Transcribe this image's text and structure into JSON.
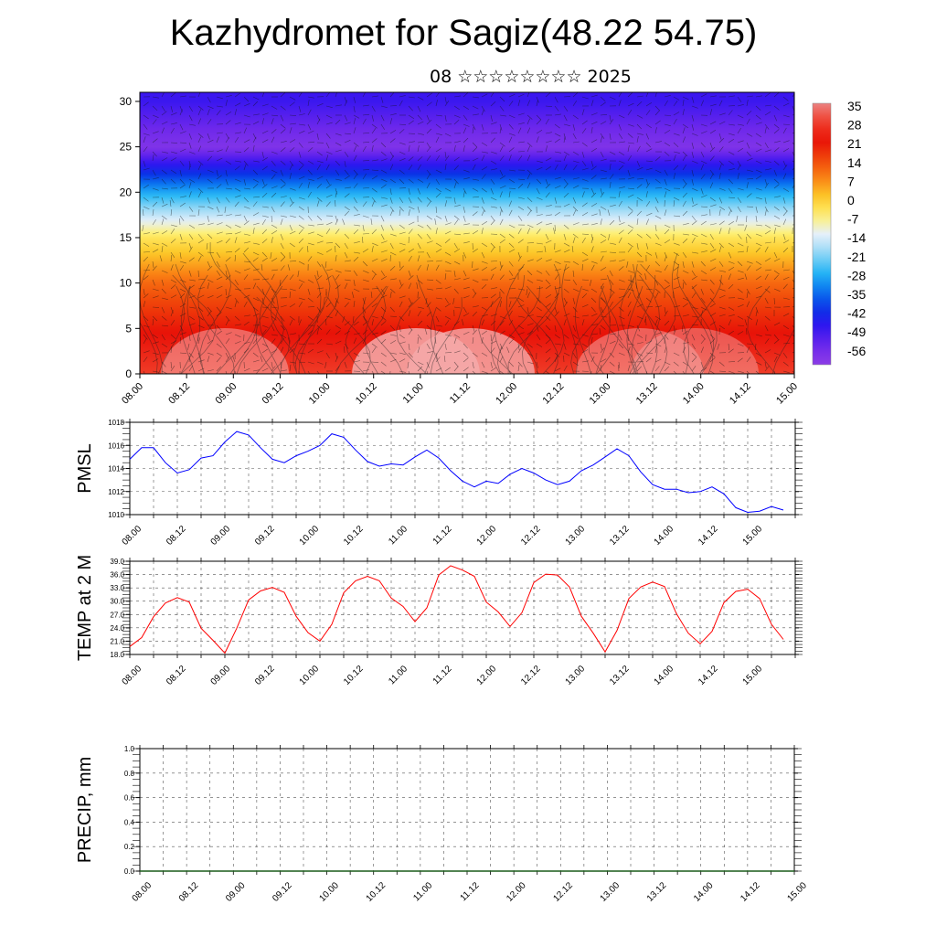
{
  "title": "Kazhydromet for Sagiz(48.22 54.75)",
  "subtitle": "08 ☆☆☆☆☆☆☆☆ 2025",
  "x_tick_labels": [
    "08.00",
    "08.12",
    "09.00",
    "09.12",
    "10.00",
    "10.12",
    "11.00",
    "11.12",
    "12.00",
    "12.12",
    "13.00",
    "13.12",
    "14.00",
    "14.12",
    "15.00"
  ],
  "chart_data": [
    {
      "type": "heatmap",
      "ylim": [
        0,
        31
      ],
      "yticks": [
        0,
        5,
        10,
        15,
        20,
        25,
        30
      ],
      "colorbar_labels": [
        "35",
        "28",
        "21",
        "14",
        "7",
        "0",
        "-7",
        "-14",
        "-21",
        "-28",
        "-35",
        "-42",
        "-49",
        "-56"
      ],
      "vertical_temperature_profile": {
        "levels": [
          0,
          5,
          10,
          15,
          20,
          25,
          30
        ],
        "values": [
          28,
          20,
          10,
          -5,
          -30,
          -60,
          -50
        ]
      }
    },
    {
      "type": "line",
      "ylabel": "PMSL",
      "ylim": [
        1010,
        1018
      ],
      "yticks": [
        "1010",
        "1012",
        "1014",
        "1016",
        "1018"
      ],
      "color": "#0000ff",
      "x_hours": [
        0,
        3,
        6,
        9,
        12,
        15,
        18,
        21,
        24,
        27,
        30,
        33,
        36,
        39,
        42,
        45,
        48,
        51,
        54,
        57,
        60,
        63,
        66,
        69,
        72,
        75,
        78,
        81,
        84,
        87,
        90,
        93,
        96,
        99,
        102,
        105,
        108,
        111,
        114,
        117,
        120,
        123,
        126,
        129,
        132,
        135,
        138,
        141,
        144,
        147,
        150,
        153,
        156,
        159,
        162,
        165
      ],
      "values": [
        1014.8,
        1015.8,
        1015.8,
        1014.5,
        1013.6,
        1013.9,
        1014.9,
        1015.1,
        1016.3,
        1017.2,
        1016.9,
        1015.8,
        1014.8,
        1014.5,
        1015.1,
        1015.5,
        1016.0,
        1017.0,
        1016.7,
        1015.6,
        1014.6,
        1014.2,
        1014.4,
        1014.3,
        1015.0,
        1015.6,
        1014.9,
        1013.8,
        1012.9,
        1012.4,
        1012.9,
        1012.7,
        1013.5,
        1014.0,
        1013.6,
        1013.0,
        1012.6,
        1012.9,
        1013.8,
        1014.3,
        1015.0,
        1015.7,
        1015.1,
        1013.7,
        1012.6,
        1012.2,
        1012.2,
        1011.9,
        1012.0,
        1012.4,
        1011.8,
        1010.6,
        1010.2,
        1010.3,
        1010.7,
        1010.4
      ]
    },
    {
      "type": "line",
      "ylabel": "TEMP at 2 M",
      "ylim": [
        18,
        39
      ],
      "yticks": [
        "18.0",
        "21.0",
        "24.0",
        "27.0",
        "30.0",
        "33.0",
        "36.0",
        "39.0"
      ],
      "color": "#ff0000",
      "x_hours": [
        0,
        3,
        6,
        9,
        12,
        15,
        18,
        21,
        24,
        27,
        30,
        33,
        36,
        39,
        42,
        45,
        48,
        51,
        54,
        57,
        60,
        63,
        66,
        69,
        72,
        75,
        78,
        81,
        84,
        87,
        90,
        93,
        96,
        99,
        102,
        105,
        108,
        111,
        114,
        117,
        120,
        123,
        126,
        129,
        132,
        135,
        138,
        141,
        144,
        147,
        150,
        153,
        156,
        159,
        162,
        165
      ],
      "values": [
        19.8,
        21.8,
        26.5,
        29.6,
        30.8,
        29.8,
        23.9,
        21.2,
        18.3,
        23.9,
        30.3,
        32.3,
        33.1,
        32.0,
        26.6,
        22.9,
        21.0,
        24.8,
        31.9,
        34.6,
        35.6,
        34.6,
        30.7,
        28.8,
        25.4,
        28.5,
        35.9,
        38.0,
        37.0,
        35.6,
        29.8,
        27.6,
        24.3,
        27.4,
        34.2,
        36.1,
        35.9,
        33.2,
        26.6,
        22.8,
        18.6,
        23.4,
        30.6,
        33.2,
        34.3,
        33.3,
        27.2,
        22.8,
        20.4,
        23.2,
        29.7,
        32.2,
        32.7,
        30.6,
        24.8,
        21.4
      ]
    },
    {
      "type": "bar",
      "ylabel": "PRECIP, mm",
      "ylim": [
        0,
        1
      ],
      "yticks": [
        "0.0",
        "0.2",
        "0.4",
        "0.6",
        "0.8",
        "1.0"
      ],
      "values": [
        0
      ]
    }
  ]
}
